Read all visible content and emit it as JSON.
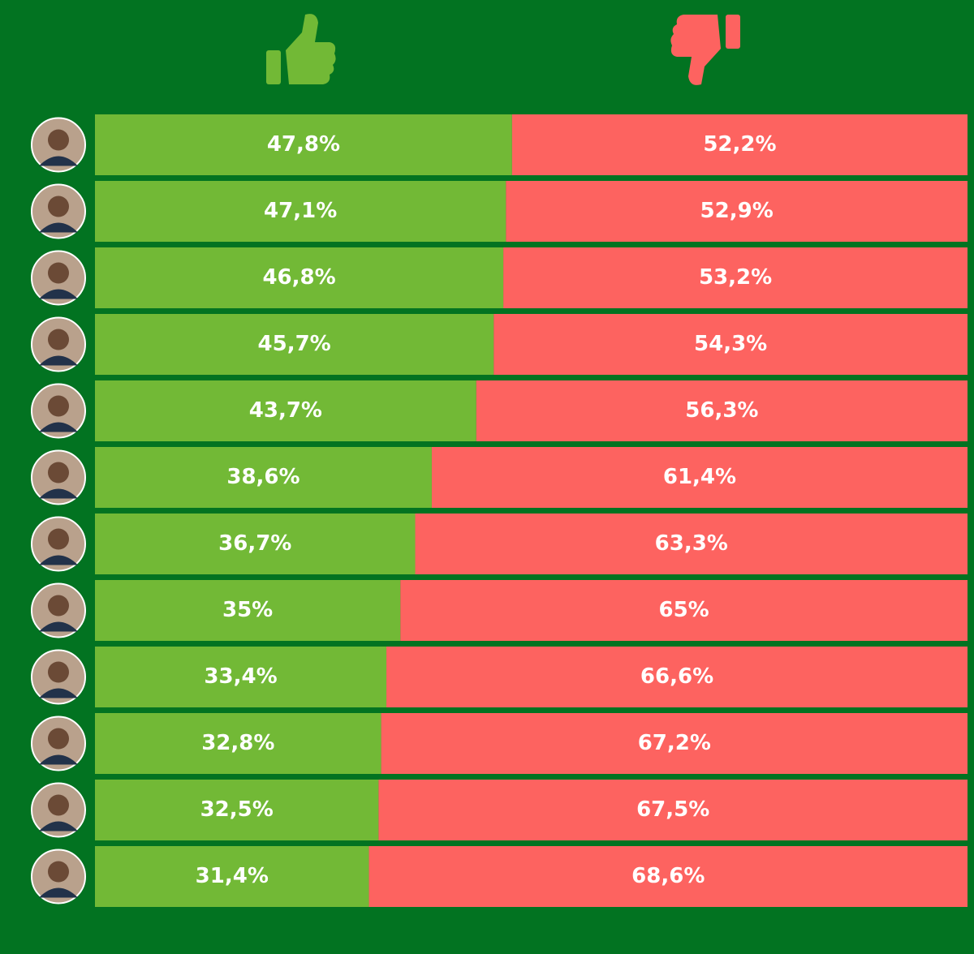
{
  "chart_data": {
    "type": "stacked-bar",
    "orientation": "horizontal",
    "categories": [
      null,
      null,
      null,
      null,
      null,
      null,
      null,
      null,
      null,
      null,
      null,
      null
    ],
    "xlim": [
      0,
      100
    ],
    "series": [
      {
        "color": "#72b936",
        "values": [
          47.8,
          47.1,
          46.8,
          45.7,
          43.7,
          38.6,
          36.7,
          35,
          33.4,
          32.8,
          32.5,
          31.4
        ],
        "value_labels": [
          "47,8%",
          "47,1%",
          "46,8%",
          "45,7%",
          "43,7%",
          "38,6%",
          "36,7%",
          "35%",
          "33,4%",
          "32,8%",
          "32,5%",
          "31,4%"
        ]
      },
      {
        "color": "#fd6360",
        "values": [
          52.2,
          52.9,
          53.2,
          54.3,
          56.3,
          61.4,
          63.3,
          65,
          66.6,
          67.2,
          67.5,
          68.6
        ],
        "value_labels": [
          "52,2%",
          "52,9%",
          "53,2%",
          "54,3%",
          "56,3%",
          "61,4%",
          "63,3%",
          "65%",
          "66,6%",
          "67,2%",
          "67,5%",
          "68,6%"
        ]
      }
    ]
  }
}
